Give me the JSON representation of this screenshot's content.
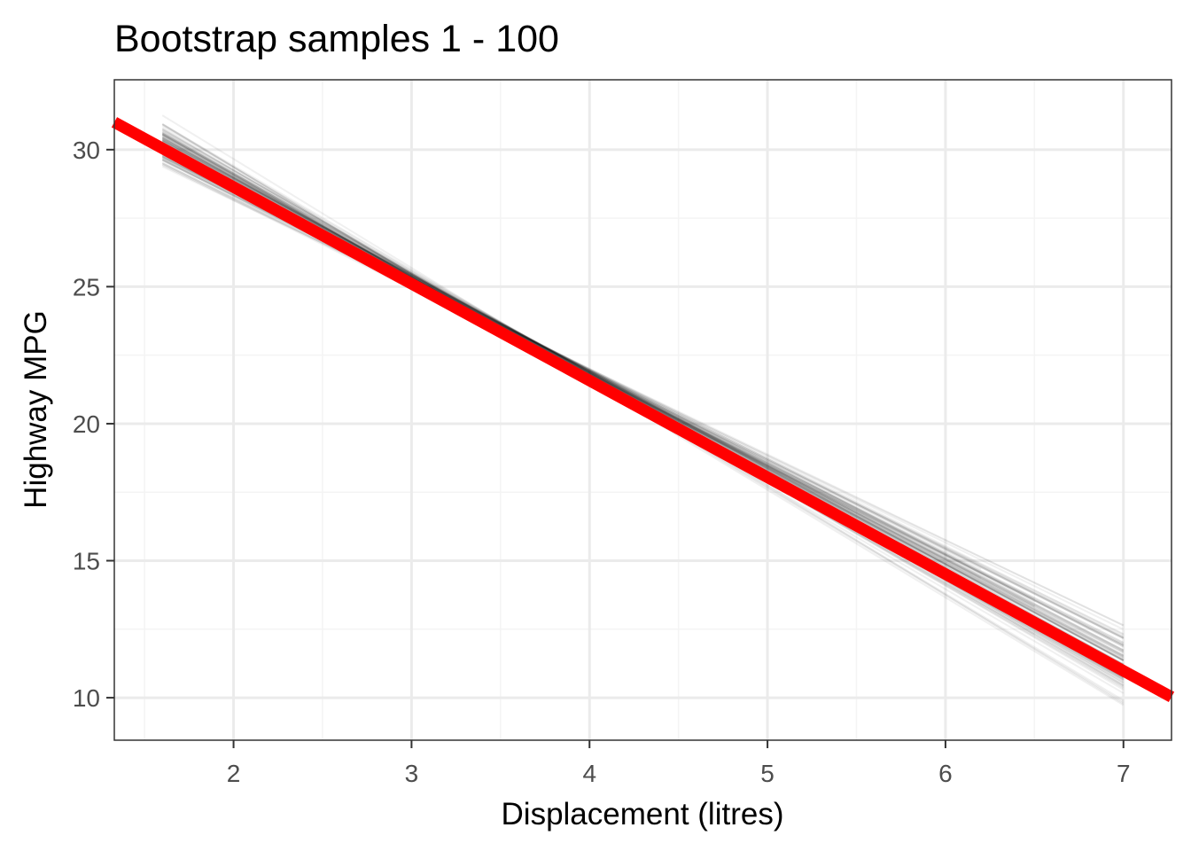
{
  "chart_data": {
    "type": "line",
    "title": "Bootstrap samples 1 - 100",
    "xlabel": "Displacement (litres)",
    "ylabel": "Highway MPG",
    "xlim": [
      1.33,
      7.27
    ],
    "ylim": [
      8.45,
      32.55
    ],
    "x_ticks": [
      2,
      3,
      4,
      5,
      6,
      7
    ],
    "x_tick_labels": [
      "2",
      "3",
      "4",
      "5",
      "6",
      "7"
    ],
    "x_minor_ticks": [
      1.5,
      2.5,
      3.5,
      4.5,
      5.5,
      6.5
    ],
    "y_ticks": [
      10,
      15,
      20,
      25,
      30
    ],
    "y_tick_labels": [
      "10",
      "15",
      "20",
      "25",
      "30"
    ],
    "y_minor_ticks": [
      12.5,
      17.5,
      22.5,
      27.5
    ],
    "grid": true,
    "legend": "none",
    "colors": {
      "fit_line": "#ff0000",
      "bootstrap_line": "#000000",
      "grid_major": "#ebebeb",
      "grid_minor": "#f4f4f4",
      "panel_border": "#333333",
      "tick_text": "#4d4d4d"
    },
    "fit_line": {
      "name": "",
      "intercept": 35.698,
      "slope": -3.531,
      "x": [
        1.33,
        7.27
      ]
    },
    "bootstrap_lines": {
      "count": 100,
      "x_start": 1.6,
      "x_end_values": [
        7.0,
        6.5,
        6.2
      ],
      "opacity": 0.06,
      "slope_range": [
        -4.0,
        -3.1
      ],
      "line_spread": [
        {
          "x": 1.6,
          "y_min": 29.1,
          "y_max": 31.4
        },
        {
          "x": 7.0,
          "y_min": 9.4,
          "y_max": 12.9
        }
      ]
    }
  }
}
